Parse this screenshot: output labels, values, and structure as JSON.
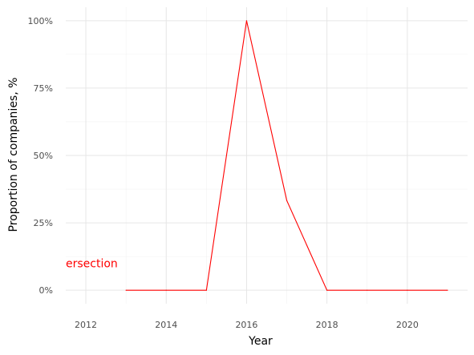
{
  "chart_data": {
    "type": "line",
    "title": "",
    "xlabel": "Year",
    "ylabel": "Proportion of companies, %",
    "xlim": [
      2011.5,
      2021.5
    ],
    "ylim": [
      -0.05,
      1.05
    ],
    "x_ticks": [
      2012,
      2014,
      2016,
      2018,
      2020
    ],
    "x_tick_labels": [
      "2012",
      "2014",
      "2016",
      "2018",
      "2020"
    ],
    "y_ticks": [
      0,
      0.25,
      0.5,
      0.75,
      1.0
    ],
    "y_tick_labels": [
      "0%",
      "25%",
      "50%",
      "75%",
      "100%"
    ],
    "grid": true,
    "series": [
      {
        "color": "#ff0000",
        "x": [
          2013,
          2014,
          2015,
          2016,
          2017,
          2018,
          2019,
          2020,
          2021
        ],
        "y": [
          0,
          0,
          0,
          1.0,
          0.333,
          0,
          0,
          0,
          0
        ]
      }
    ],
    "annotations": [
      {
        "text": "ersection",
        "x": 2011.5,
        "y": 0.1,
        "color": "#ff0000"
      }
    ]
  }
}
